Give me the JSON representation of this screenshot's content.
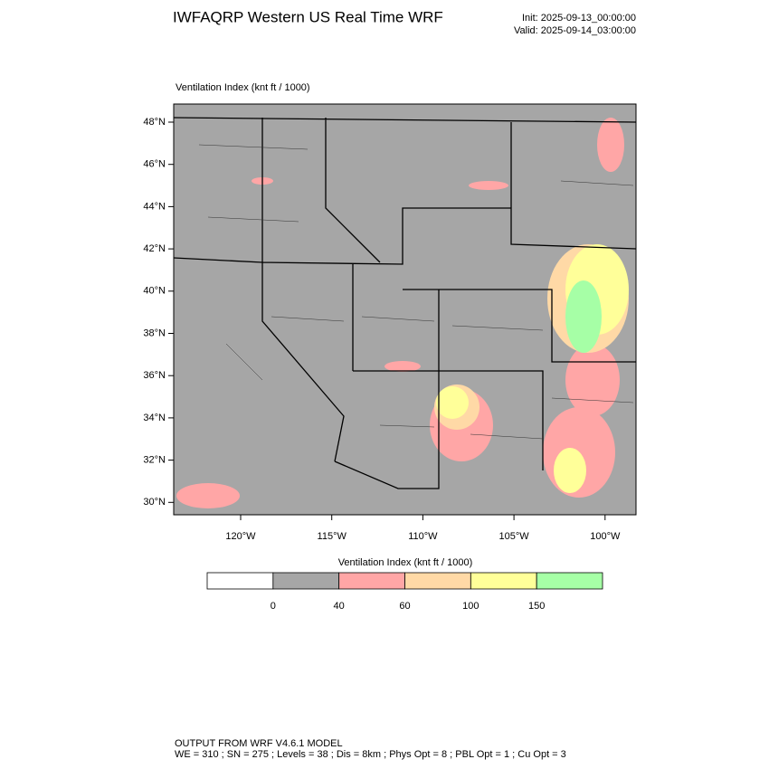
{
  "header": {
    "title": "IWFAQRP Western US Real Time WRF",
    "init": "Init: 2025-09-13_00:00:00",
    "valid": "Valid: 2025-09-14_03:00:00"
  },
  "map": {
    "title": "Ventilation Index   (knt ft / 1000)",
    "lat_labels": [
      "48°N",
      "46°N",
      "44°N",
      "42°N",
      "40°N",
      "38°N",
      "36°N",
      "34°N",
      "32°N",
      "30°N"
    ],
    "lon_labels": [
      "120°W",
      "115°W",
      "110°W",
      "105°W",
      "100°W"
    ]
  },
  "legend": {
    "title": "Ventilation Index   (knt ft / 1000)",
    "colors": [
      "#ffffff",
      "#a6a6a6",
      "#ffa6a6",
      "#ffd9a6",
      "#ffff99",
      "#a6ffa6"
    ],
    "labels": [
      "0",
      "40",
      "60",
      "100",
      "150"
    ]
  },
  "footer": {
    "line1": "OUTPUT FROM WRF V4.6.1 MODEL",
    "line2": "WE = 310 ; SN = 275 ; Levels = 38 ; Dis = 8km ; Phys Opt = 8 ; PBL Opt = 1 ; Cu Opt = 3"
  }
}
